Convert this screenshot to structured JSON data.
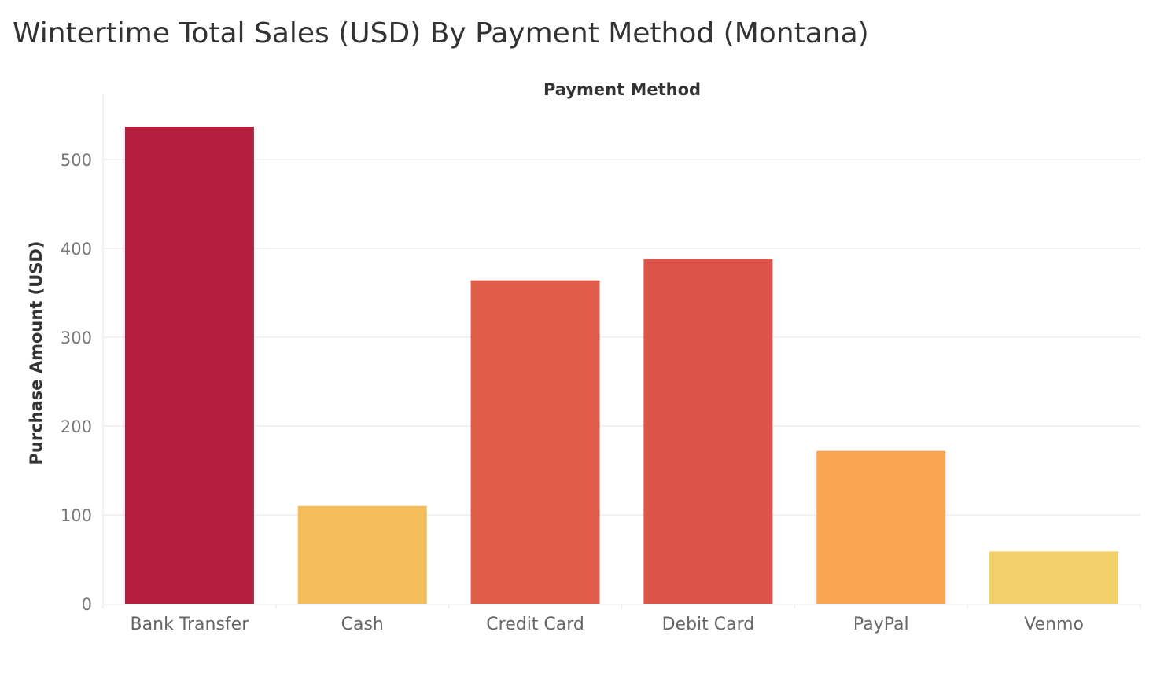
{
  "chart_data": {
    "type": "bar",
    "title": "Wintertime Total Sales (USD) By Payment Method (Montana)",
    "xlabel": "Payment Method",
    "ylabel": "Purchase Amount (USD)",
    "categories": [
      "Bank Transfer",
      "Cash",
      "Credit Card",
      "Debit Card",
      "PayPal",
      "Venmo"
    ],
    "values": [
      537,
      110,
      364,
      388,
      172,
      59
    ],
    "colors": [
      "#b61e3e",
      "#f4bd5b",
      "#e05d4b",
      "#dc5349",
      "#f8a450",
      "#f3d06a"
    ],
    "ylim": [
      0,
      560
    ],
    "yticks": [
      0,
      100,
      200,
      300,
      400,
      500
    ],
    "grid": true,
    "legend": "none"
  }
}
